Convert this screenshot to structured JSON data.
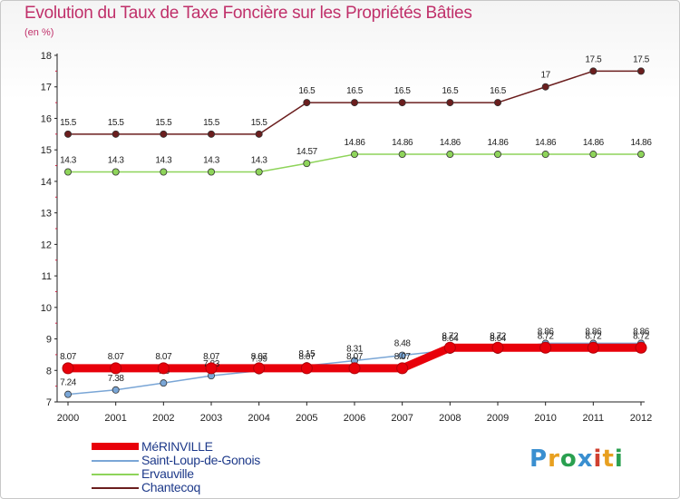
{
  "header": {
    "title": "Evolution du Taux de Taxe Foncière sur les Propriétés Bâties",
    "unit": "(en %)"
  },
  "logo": {
    "text": "Proxiti",
    "colors": [
      "#3a8fd0",
      "#e8a020",
      "#2aa050",
      "#3a8fd0",
      "#d04030",
      "#e8a020",
      "#2aa050"
    ]
  },
  "chart_data": {
    "type": "line",
    "title": "Evolution du Taux de Taxe Foncière sur les Propriétés Bâties",
    "ylabel": "(en %)",
    "xlabel": "",
    "x": [
      "2000",
      "2001",
      "2002",
      "2003",
      "2004",
      "2005",
      "2006",
      "2007",
      "2008",
      "2009",
      "2010",
      "2011",
      "2012"
    ],
    "ylim": [
      7,
      18
    ],
    "yticks": [
      7,
      8,
      9,
      10,
      11,
      12,
      13,
      14,
      15,
      16,
      17,
      18
    ],
    "legend_position": "bottom-left",
    "series": [
      {
        "name": "Chantecoq",
        "color": "#6b1e1e",
        "width": 1.5,
        "values": [
          15.5,
          15.5,
          15.5,
          15.5,
          15.5,
          16.5,
          16.5,
          16.5,
          16.5,
          16.5,
          17,
          17.5,
          17.5
        ],
        "labels": [
          "15.5",
          "15.5",
          "15.5",
          "15.5",
          "15.5",
          "16.5",
          "16.5",
          "16.5",
          "16.5",
          "16.5",
          "17",
          "17.5",
          "17.5"
        ]
      },
      {
        "name": "Ervauville",
        "color": "#8ed45a",
        "width": 1.5,
        "values": [
          14.3,
          14.3,
          14.3,
          14.3,
          14.3,
          14.57,
          14.86,
          14.86,
          14.86,
          14.86,
          14.86,
          14.86,
          14.86
        ],
        "labels": [
          "14.3",
          "14.3",
          "14.3",
          "14.3",
          "14.3",
          "14.57",
          "14.86",
          "14.86",
          "14.86",
          "14.86",
          "14.86",
          "14.86",
          "14.86"
        ]
      },
      {
        "name": "Saint-Loup-de-Gonois",
        "color": "#7aa6d6",
        "width": 1.5,
        "values": [
          7.24,
          7.38,
          7.6,
          7.83,
          7.99,
          8.15,
          8.31,
          8.48,
          8.64,
          8.64,
          8.86,
          8.86,
          8.86
        ],
        "labels": [
          "7.24",
          "7.38",
          "7.6",
          "7.83",
          "7.99",
          "8.15",
          "8.31",
          "8.48",
          "8.64",
          "8.64",
          "8.86",
          "8.86",
          "8.86"
        ]
      },
      {
        "name": "MéRINVILLE",
        "color": "#e8000a",
        "width": 9,
        "values": [
          8.07,
          8.07,
          8.07,
          8.07,
          8.07,
          8.07,
          8.07,
          8.07,
          8.72,
          8.72,
          8.72,
          8.72,
          8.72
        ],
        "labels": [
          "8.07",
          "8.07",
          "8.07",
          "8.07",
          "8.07",
          "8.07",
          "8.07",
          "8.07",
          "8.72",
          "8.72",
          "8.72",
          "8.72",
          "8.72"
        ]
      }
    ]
  }
}
